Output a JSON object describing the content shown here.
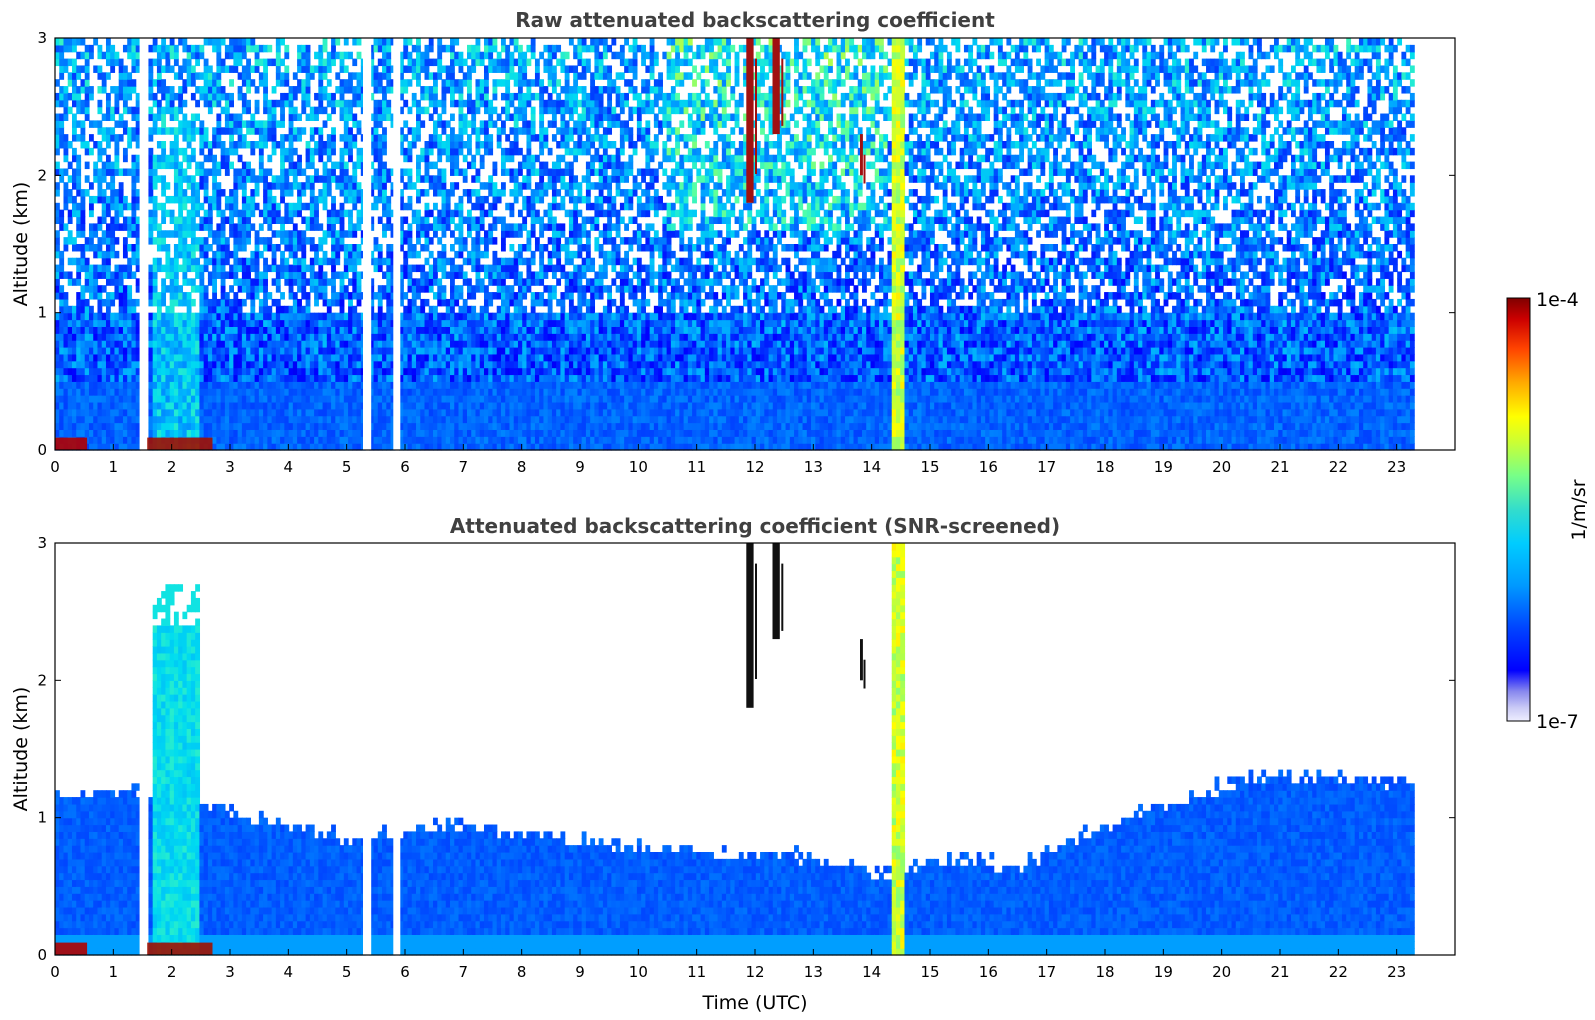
{
  "chart_data": [
    {
      "type": "heatmap",
      "title": "Raw attenuated backscattering coefficient",
      "xlabel": "",
      "ylabel": "Altitude (km)",
      "x_ticks": [
        "0",
        "1",
        "2",
        "3",
        "4",
        "5",
        "6",
        "7",
        "8",
        "9",
        "10",
        "11",
        "12",
        "13",
        "14",
        "15",
        "16",
        "17",
        "18",
        "19",
        "20",
        "21",
        "22",
        "23"
      ],
      "y_ticks": [
        "0",
        "1",
        "2",
        "3"
      ],
      "xlim": [
        0,
        24
      ],
      "ylim": [
        0,
        3
      ],
      "data_end_time": 23.3,
      "data_gaps": [
        [
          1.45,
          1.58
        ],
        [
          5.28,
          5.42
        ],
        [
          5.8,
          5.92
        ]
      ],
      "features": {
        "boundary_layer_top_km": 0.5,
        "surface_layer_km": 0.1,
        "fog_event_hours": [
          0.0,
          0.55
        ],
        "fog_event2_hours": [
          1.5,
          2.7
        ],
        "elevated_aerosol_hours": [
          1.7,
          2.5
        ],
        "vertical_plume_hours": [
          14.38,
          14.55
        ],
        "high_cloud_streaks": [
          {
            "t0": 11.85,
            "t1": 12.1,
            "z0": 1.8,
            "z1": 3.0
          },
          {
            "t0": 12.3,
            "t1": 12.55,
            "z0": 2.3,
            "z1": 3.0
          },
          {
            "t0": 13.8,
            "t1": 13.9,
            "z0": 2.0,
            "z1": 2.3
          }
        ]
      }
    },
    {
      "type": "heatmap",
      "title": "Attenuated backscattering coefficient (SNR-screened)",
      "xlabel": "Time (UTC)",
      "ylabel": "Altitude (km)",
      "x_ticks": [
        "0",
        "1",
        "2",
        "3",
        "4",
        "5",
        "6",
        "7",
        "8",
        "9",
        "10",
        "11",
        "12",
        "13",
        "14",
        "15",
        "16",
        "17",
        "18",
        "19",
        "20",
        "21",
        "22",
        "23"
      ],
      "y_ticks": [
        "0",
        "1",
        "2",
        "3"
      ],
      "xlim": [
        0,
        24
      ],
      "ylim": [
        0,
        3
      ],
      "data_end_time": 23.3,
      "screened_layer_top_km": [
        [
          0,
          1.15
        ],
        [
          1.5,
          1.2
        ],
        [
          3.0,
          1.05
        ],
        [
          5.0,
          0.85
        ],
        [
          7.0,
          0.95
        ],
        [
          9.0,
          0.85
        ],
        [
          11.0,
          0.75
        ],
        [
          12.5,
          0.75
        ],
        [
          13.5,
          0.65
        ],
        [
          14.3,
          0.6
        ],
        [
          15.5,
          0.7
        ],
        [
          16.5,
          0.65
        ],
        [
          17.5,
          0.85
        ],
        [
          19.0,
          1.1
        ],
        [
          20.5,
          1.3
        ],
        [
          22.0,
          1.3
        ],
        [
          23.3,
          1.25
        ]
      ]
    }
  ],
  "colorbar": {
    "label": "1/m/sr",
    "min_label": "1e-7",
    "max_label": "1e-4",
    "colors": [
      "#ffffff",
      "#d4d4f4",
      "#aaaaf0",
      "#7f7fea",
      "#0000ff",
      "#0033ff",
      "#0066ff",
      "#0099ff",
      "#00ccff",
      "#33e0cc",
      "#66ff99",
      "#99ff66",
      "#ccff33",
      "#ffff00",
      "#ffcc00",
      "#ff9900",
      "#ff6600",
      "#ff3300",
      "#cc0000",
      "#800000"
    ]
  }
}
